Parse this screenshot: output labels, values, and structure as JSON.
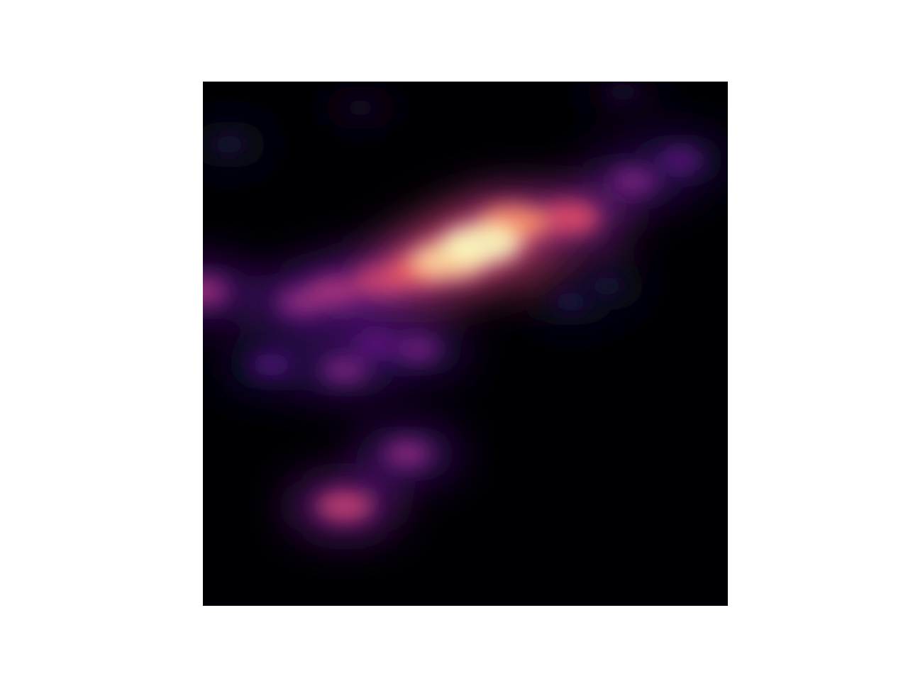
{
  "chart_data": {
    "type": "heatmap",
    "colormap": "magma",
    "axes_visible": false,
    "colorbar": false,
    "legend": "none",
    "grid": false,
    "value_range": [
      0,
      1
    ],
    "smoothing": "gaussian",
    "hotspots": [
      {
        "x": 0.53,
        "y": 0.31,
        "intensity": 1.0
      },
      {
        "x": 0.47,
        "y": 0.34,
        "intensity": 0.92
      },
      {
        "x": 0.59,
        "y": 0.27,
        "intensity": 0.78
      },
      {
        "x": 0.41,
        "y": 0.36,
        "intensity": 0.66
      },
      {
        "x": 0.7,
        "y": 0.26,
        "intensity": 0.62
      },
      {
        "x": 0.34,
        "y": 0.38,
        "intensity": 0.56
      },
      {
        "x": 0.25,
        "y": 0.4,
        "intensity": 0.48
      },
      {
        "x": 0.82,
        "y": 0.19,
        "intensity": 0.36
      },
      {
        "x": 0.91,
        "y": 0.15,
        "intensity": 0.28
      },
      {
        "x": 0.19,
        "y": 0.42,
        "intensity": 0.42
      },
      {
        "x": 0.0,
        "y": 0.4,
        "intensity": 0.44
      },
      {
        "x": 0.41,
        "y": 0.51,
        "intensity": 0.34
      },
      {
        "x": 0.27,
        "y": 0.55,
        "intensity": 0.36
      },
      {
        "x": 0.13,
        "y": 0.54,
        "intensity": 0.26
      },
      {
        "x": 0.33,
        "y": 0.5,
        "intensity": 0.3
      },
      {
        "x": 0.39,
        "y": 0.71,
        "intensity": 0.4
      },
      {
        "x": 0.27,
        "y": 0.81,
        "intensity": 0.55
      },
      {
        "x": 0.7,
        "y": 0.42,
        "intensity": 0.14
      },
      {
        "x": 0.77,
        "y": 0.39,
        "intensity": 0.12
      },
      {
        "x": 0.05,
        "y": 0.12,
        "intensity": 0.12
      },
      {
        "x": 0.3,
        "y": 0.05,
        "intensity": 0.08
      },
      {
        "x": 0.8,
        "y": 0.02,
        "intensity": 0.1
      }
    ]
  }
}
